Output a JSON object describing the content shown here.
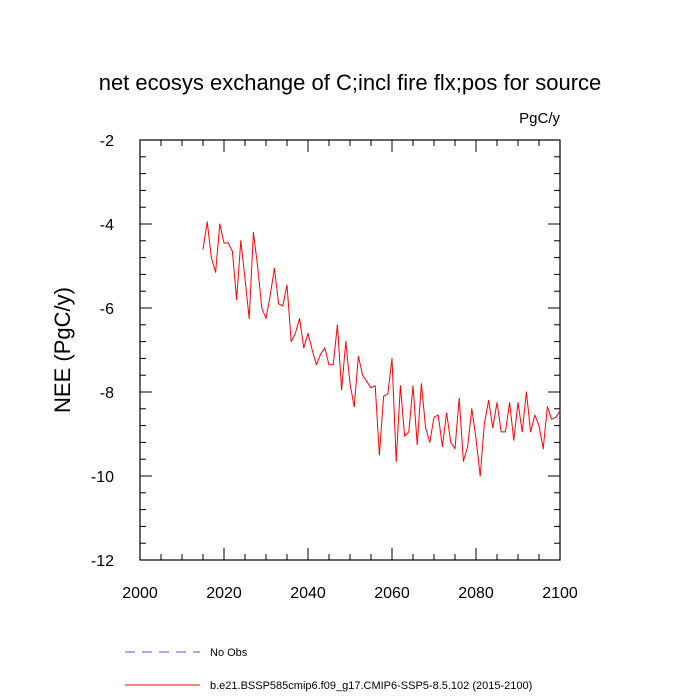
{
  "chart_data": {
    "type": "line",
    "title": "net ecosys exchange of C;incl fire flx;pos for source",
    "units_label": "PgC/y",
    "ylabel": "NEE  (PgC/y)",
    "xlabel": "",
    "xlim": [
      2000,
      2100
    ],
    "ylim": [
      -12,
      -2
    ],
    "x_ticks": [
      2000,
      2020,
      2040,
      2060,
      2080,
      2100
    ],
    "x_tick_labels": [
      "2000",
      "2020",
      "2040",
      "2060",
      "2080",
      "2100"
    ],
    "y_ticks": [
      -2,
      -4,
      -6,
      -8,
      -10,
      -12
    ],
    "y_tick_labels": [
      "-2",
      "-4",
      "-6",
      "-8",
      "-10",
      "-12"
    ],
    "grid": false,
    "legend": [
      {
        "name": "No Obs",
        "style": "dashed",
        "color": "#5555dd"
      },
      {
        "name": "b.e21.BSSP585cmip6.f09_g17.CMIP6-SSP5-8.5.102 (2015-2100)",
        "style": "solid",
        "color": "#ff0000"
      }
    ],
    "series": [
      {
        "name": "b.e21.BSSP585cmip6.f09_g17.CMIP6-SSP5-8.5.102 (2015-2100)",
        "color": "#ff0000",
        "x": [
          2015,
          2016,
          2017,
          2018,
          2019,
          2020,
          2021,
          2022,
          2023,
          2024,
          2025,
          2026,
          2027,
          2028,
          2029,
          2030,
          2031,
          2032,
          2033,
          2034,
          2035,
          2036,
          2037,
          2038,
          2039,
          2040,
          2041,
          2042,
          2043,
          2044,
          2045,
          2046,
          2047,
          2048,
          2049,
          2050,
          2051,
          2052,
          2053,
          2054,
          2055,
          2056,
          2057,
          2058,
          2059,
          2060,
          2061,
          2062,
          2063,
          2064,
          2065,
          2066,
          2067,
          2068,
          2069,
          2070,
          2071,
          2072,
          2073,
          2074,
          2075,
          2076,
          2077,
          2078,
          2079,
          2080,
          2081,
          2082,
          2083,
          2084,
          2085,
          2086,
          2087,
          2088,
          2089,
          2090,
          2091,
          2092,
          2093,
          2094,
          2095,
          2096,
          2097,
          2098,
          2099,
          2100
        ],
        "values": [
          -4.6,
          -3.95,
          -4.8,
          -5.15,
          -4.0,
          -4.45,
          -4.45,
          -4.65,
          -5.8,
          -4.4,
          -5.3,
          -6.25,
          -4.2,
          -5.0,
          -6.0,
          -6.25,
          -5.7,
          -5.05,
          -5.9,
          -5.95,
          -5.45,
          -6.8,
          -6.6,
          -6.25,
          -6.95,
          -6.6,
          -7.0,
          -7.35,
          -7.1,
          -6.95,
          -7.35,
          -7.35,
          -6.4,
          -7.95,
          -6.8,
          -7.8,
          -8.35,
          -7.15,
          -7.6,
          -7.75,
          -7.9,
          -7.85,
          -9.5,
          -8.1,
          -8.05,
          -7.2,
          -9.65,
          -7.85,
          -9.05,
          -8.95,
          -7.85,
          -9.25,
          -7.8,
          -8.85,
          -9.2,
          -8.6,
          -8.55,
          -9.3,
          -8.5,
          -9.2,
          -9.35,
          -8.15,
          -9.65,
          -9.3,
          -8.4,
          -9.1,
          -10.0,
          -8.75,
          -8.2,
          -8.85,
          -8.25,
          -8.95,
          -8.95,
          -8.25,
          -9.15,
          -8.25,
          -8.95,
          -8.0,
          -8.95,
          -8.55,
          -8.8,
          -9.35,
          -8.35,
          -8.65,
          -8.6,
          -8.45
        ]
      }
    ]
  }
}
